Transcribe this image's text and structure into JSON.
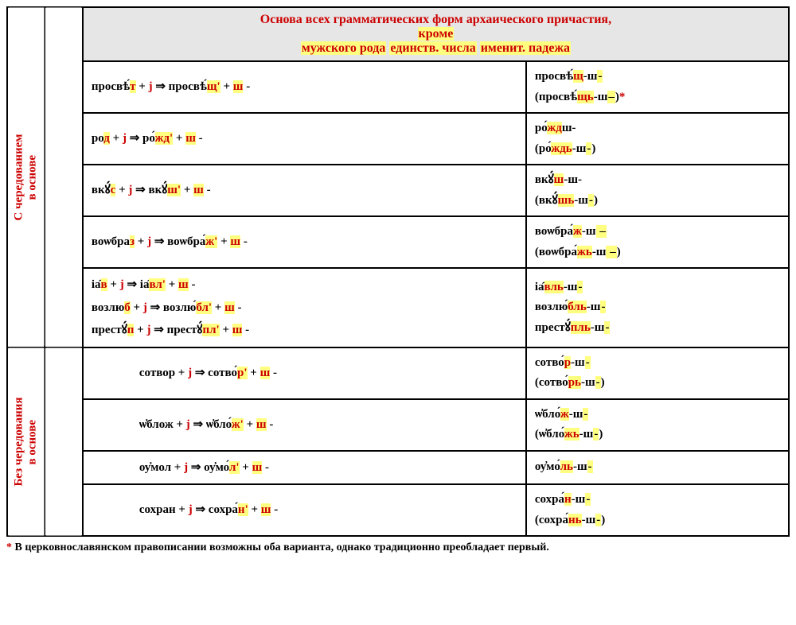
{
  "header": {
    "line1": "Основа всех грамматических форм архаического причастия,",
    "line2": "кроме",
    "line3_a": "мужского рода",
    "line3_b": "единств. числа",
    "line3_c": "именит. падежа"
  },
  "section_labels": {
    "with_alt": "С чередованием\nв основе",
    "without_alt": "Без чередования\nв основе"
  },
  "rows": [
    {
      "formula": [
        {
          "t": "просвѣ́",
          "c": "k"
        },
        {
          "t": "т",
          "c": "rh"
        },
        {
          "t": " + ",
          "c": "k"
        },
        {
          "t": "j",
          "c": "r"
        },
        {
          "t": "  ⇒  ",
          "c": "arrow"
        },
        {
          "t": "просвѣ́",
          "c": "k"
        },
        {
          "t": "щ'",
          "c": "rh"
        },
        {
          "t": " + ",
          "c": "k"
        },
        {
          "t": "ш",
          "c": "rh"
        },
        {
          "t": " -",
          "c": "k"
        }
      ],
      "result": [
        [
          {
            "t": "просвѣ́",
            "c": "k"
          },
          {
            "t": "щ",
            "c": "rh"
          },
          {
            "t": "-ш",
            "c": "k"
          },
          {
            "t": "-",
            "c": "hl"
          }
        ],
        [
          {
            "t": "(",
            "c": "paren"
          },
          {
            "t": "просвѣ́",
            "c": "k"
          },
          {
            "t": "щь",
            "c": "rh"
          },
          {
            "t": "-ш",
            "c": "k"
          },
          {
            "t": "–",
            "c": "hl"
          },
          {
            "t": ")",
            "c": "paren"
          },
          {
            "t": "*",
            "c": "r"
          }
        ]
      ]
    },
    {
      "formula": [
        {
          "t": "ро",
          "c": "k"
        },
        {
          "t": "д",
          "c": "rh"
        },
        {
          "t": "  + ",
          "c": "k"
        },
        {
          "t": "j",
          "c": "r"
        },
        {
          "t": "  ⇒  ",
          "c": "arrow"
        },
        {
          "t": "ро́",
          "c": "k"
        },
        {
          "t": "жд'",
          "c": "rh"
        },
        {
          "t": " + ",
          "c": "k"
        },
        {
          "t": "ш",
          "c": "rh"
        },
        {
          "t": " -",
          "c": "k"
        }
      ],
      "result": [
        [
          {
            "t": "ро́",
            "c": "k"
          },
          {
            "t": "жд",
            "c": "rh"
          },
          {
            "t": "ш-",
            "c": "k"
          }
        ],
        [
          {
            "t": "(",
            "c": "paren"
          },
          {
            "t": "ро́",
            "c": "k"
          },
          {
            "t": "ждь",
            "c": "rh"
          },
          {
            "t": "-ш",
            "c": "k"
          },
          {
            "t": "-",
            "c": "hl"
          },
          {
            "t": ")",
            "c": "paren"
          }
        ]
      ]
    },
    {
      "formula": [
        {
          "t": "вкꙋ́",
          "c": "k"
        },
        {
          "t": "с",
          "c": "rh"
        },
        {
          "t": " + ",
          "c": "k"
        },
        {
          "t": "j",
          "c": "r"
        },
        {
          "t": "  ⇒ ",
          "c": "arrow"
        },
        {
          "t": "вкꙋ́",
          "c": "k"
        },
        {
          "t": "ш'",
          "c": "rh"
        },
        {
          "t": " + ",
          "c": "k"
        },
        {
          "t": "ш",
          "c": "rh"
        },
        {
          "t": " -",
          "c": "k"
        }
      ],
      "result": [
        [
          {
            "t": "вкꙋ́",
            "c": "k"
          },
          {
            "t": "ш",
            "c": "rh"
          },
          {
            "t": "-ш-",
            "c": "k"
          }
        ],
        [
          {
            "t": "(",
            "c": "paren"
          },
          {
            "t": "вкꙋ́",
            "c": "k"
          },
          {
            "t": "шь",
            "c": "rh"
          },
          {
            "t": "-ш",
            "c": "k"
          },
          {
            "t": "-",
            "c": "hl"
          },
          {
            "t": ")",
            "c": "paren"
          }
        ]
      ]
    },
    {
      "formula": [
        {
          "t": "воѡбра",
          "c": "k"
        },
        {
          "t": "з",
          "c": "rh"
        },
        {
          "t": "  + ",
          "c": "k"
        },
        {
          "t": "j",
          "c": "r"
        },
        {
          "t": " ⇒ ",
          "c": "arrow"
        },
        {
          "t": "воѡбра́",
          "c": "k"
        },
        {
          "t": "ж'",
          "c": "rh"
        },
        {
          "t": " + ",
          "c": "k"
        },
        {
          "t": "ш",
          "c": "rh"
        },
        {
          "t": " -",
          "c": "k"
        }
      ],
      "result": [
        [
          {
            "t": "воѡбра́",
            "c": "k"
          },
          {
            "t": "ж",
            "c": "rh"
          },
          {
            "t": "-ш",
            "c": "k"
          },
          {
            "t": " –",
            "c": "hl"
          }
        ],
        [
          {
            "t": "(",
            "c": "paren"
          },
          {
            "t": "воѡбра́",
            "c": "k"
          },
          {
            "t": "жь",
            "c": "rh"
          },
          {
            "t": "-ш",
            "c": "k"
          },
          {
            "t": " –",
            "c": "hl"
          },
          {
            "t": ")",
            "c": "paren"
          }
        ]
      ]
    },
    {
      "formula_multi": [
        [
          {
            "t": "іа̑",
            "c": "k"
          },
          {
            "t": "в",
            "c": "rh"
          },
          {
            "t": " + ",
            "c": "k"
          },
          {
            "t": "j",
            "c": "r"
          },
          {
            "t": "  ⇒  ",
            "c": "arrow"
          },
          {
            "t": "іа̑",
            "c": "k"
          },
          {
            "t": "вл'",
            "c": "rh"
          },
          {
            "t": " + ",
            "c": "k"
          },
          {
            "t": "ш",
            "c": "rh"
          },
          {
            "t": " -",
            "c": "k"
          }
        ],
        [
          {
            "t": "возлю",
            "c": "k"
          },
          {
            "t": "б",
            "c": "rh"
          },
          {
            "t": " + ",
            "c": "k"
          },
          {
            "t": "j",
            "c": "r"
          },
          {
            "t": "  ⇒ ",
            "c": "arrow"
          },
          {
            "t": "возлю́",
            "c": "k"
          },
          {
            "t": "бл'",
            "c": "rh"
          },
          {
            "t": " + ",
            "c": "k"
          },
          {
            "t": "ш",
            "c": "rh"
          },
          {
            "t": " -",
            "c": "k"
          }
        ],
        [
          {
            "t": "престꙋ́",
            "c": "k"
          },
          {
            "t": "п",
            "c": "rh"
          },
          {
            "t": " + ",
            "c": "k"
          },
          {
            "t": "j",
            "c": "r"
          },
          {
            "t": "  ⇒ ",
            "c": "arrow"
          },
          {
            "t": "престꙋ́",
            "c": "k"
          },
          {
            "t": "пл'",
            "c": "rh"
          },
          {
            "t": " + ",
            "c": "k"
          },
          {
            "t": "ш",
            "c": "rh"
          },
          {
            "t": " -",
            "c": "k"
          }
        ]
      ],
      "result_multi": [
        [
          {
            "t": "іа̑",
            "c": "k"
          },
          {
            "t": "вль",
            "c": "rh"
          },
          {
            "t": "-ш",
            "c": "k"
          },
          {
            "t": "-",
            "c": "hl"
          }
        ],
        [
          {
            "t": "возлю́",
            "c": "k"
          },
          {
            "t": "бль",
            "c": "rh"
          },
          {
            "t": "-ш",
            "c": "k"
          },
          {
            "t": "-",
            "c": "hl"
          }
        ],
        [
          {
            "t": "престꙋ́",
            "c": "k"
          },
          {
            "t": "пль",
            "c": "rh"
          },
          {
            "t": "-ш",
            "c": "k"
          },
          {
            "t": "-",
            "c": "hl"
          }
        ]
      ]
    },
    {
      "formula": [
        {
          "t": "сотвор  + ",
          "c": "k"
        },
        {
          "t": "j",
          "c": "r"
        },
        {
          "t": "  ⇒ ",
          "c": "arrow"
        },
        {
          "t": "сотво́",
          "c": "k"
        },
        {
          "t": "р'",
          "c": "rh"
        },
        {
          "t": "  + ",
          "c": "k"
        },
        {
          "t": "ш",
          "c": "rh"
        },
        {
          "t": " -",
          "c": "k"
        }
      ],
      "result": [
        [
          {
            "t": "сотво́",
            "c": "k"
          },
          {
            "t": "р",
            "c": "rh"
          },
          {
            "t": "-ш",
            "c": "k"
          },
          {
            "t": "-",
            "c": "hl"
          }
        ],
        [
          {
            "t": "(",
            "c": "paren"
          },
          {
            "t": "сотво́",
            "c": "k"
          },
          {
            "t": "рь",
            "c": "rh"
          },
          {
            "t": "-ш",
            "c": "k"
          },
          {
            "t": "-",
            "c": "hl"
          },
          {
            "t": ")",
            "c": "paren"
          }
        ]
      ]
    },
    {
      "formula": [
        {
          "t": "ѡ҆блож  + ",
          "c": "k"
        },
        {
          "t": "j",
          "c": "r"
        },
        {
          "t": "  ⇒ ",
          "c": "arrow"
        },
        {
          "t": "ѡ҆бло́",
          "c": "k"
        },
        {
          "t": "ж'",
          "c": "rh"
        },
        {
          "t": " + ",
          "c": "k"
        },
        {
          "t": "ш",
          "c": "rh"
        },
        {
          "t": " -",
          "c": "k"
        }
      ],
      "result": [
        [
          {
            "t": "ѡ҆бло́",
            "c": "k"
          },
          {
            "t": "ж",
            "c": "rh"
          },
          {
            "t": "-ш",
            "c": "k"
          },
          {
            "t": "-",
            "c": "hl"
          }
        ],
        [
          {
            "t": "(",
            "c": "paren"
          },
          {
            "t": "ѡ҆бло́",
            "c": "k"
          },
          {
            "t": "жь",
            "c": "rh"
          },
          {
            "t": "-ш",
            "c": "k"
          },
          {
            "t": "-",
            "c": "hl"
          },
          {
            "t": ")",
            "c": "paren"
          }
        ]
      ]
    },
    {
      "formula": [
        {
          "t": "оу҆мол  + ",
          "c": "k"
        },
        {
          "t": "j",
          "c": "r"
        },
        {
          "t": "  ⇒ ",
          "c": "arrow"
        },
        {
          "t": "оу҆мо́",
          "c": "k"
        },
        {
          "t": "л'",
          "c": "rh"
        },
        {
          "t": " + ",
          "c": "k"
        },
        {
          "t": "ш",
          "c": "rh"
        },
        {
          "t": " -",
          "c": "k"
        }
      ],
      "result": [
        [
          {
            "t": "оу҆мо́",
            "c": "k"
          },
          {
            "t": "ль",
            "c": "rh"
          },
          {
            "t": "-ш",
            "c": "k"
          },
          {
            "t": "-",
            "c": "hl"
          }
        ]
      ]
    },
    {
      "formula": [
        {
          "t": "сохран  + ",
          "c": "k"
        },
        {
          "t": "j",
          "c": "r"
        },
        {
          "t": "  ⇒ ",
          "c": "arrow"
        },
        {
          "t": "сохра́",
          "c": "k"
        },
        {
          "t": "н'",
          "c": "rh"
        },
        {
          "t": " + ",
          "c": "k"
        },
        {
          "t": "ш",
          "c": "rh"
        },
        {
          "t": " -",
          "c": "k"
        }
      ],
      "result": [
        [
          {
            "t": "сохра́",
            "c": "k"
          },
          {
            "t": "н",
            "c": "rh"
          },
          {
            "t": "-ш",
            "c": "k"
          },
          {
            "t": "-",
            "c": "hl"
          }
        ],
        [
          {
            "t": "(",
            "c": "paren"
          },
          {
            "t": "сохра́",
            "c": "k"
          },
          {
            "t": "нь",
            "c": "rh"
          },
          {
            "t": "-ш",
            "c": "k"
          },
          {
            "t": "-",
            "c": "hl"
          },
          {
            "t": ")",
            "c": "paren"
          }
        ]
      ]
    }
  ],
  "footnote": {
    "star": "*",
    "text": " В церковнославянском правописании возможны оба варианта, однако традиционно преобладает первый."
  },
  "styling": {
    "red": "#cc0000",
    "highlight": "#ffff80",
    "header_bg": "#e6e6e6",
    "border": "#000000"
  }
}
